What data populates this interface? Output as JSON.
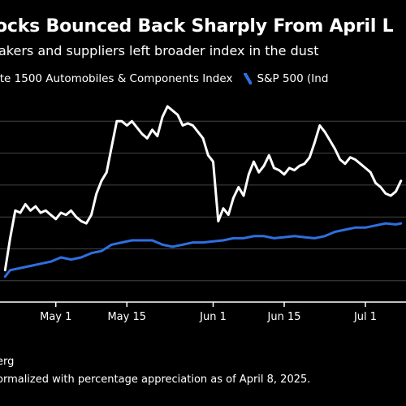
{
  "header": {
    "title": "ocks Bounced Back Sharply From April L",
    "subtitle": "akers and suppliers left broader index in the dust"
  },
  "legend": {
    "series1": "ite 1500 Automobiles & Components Index",
    "series2": "S&P 500 (Ind"
  },
  "footer": {
    "source": "erg",
    "note": "ormalized with percentage appreciation as of April 8, 2025."
  },
  "colors": {
    "background": "#000000",
    "series1": "#ffffff",
    "series2": "#2f6fe0",
    "grid": "#444444"
  },
  "chart_data": {
    "type": "line",
    "xlabel": "",
    "ylabel": "",
    "x_ticks": [
      "May 1",
      "May 15",
      "Jun 1",
      "Jun 15",
      "Jul 1"
    ],
    "grid": "horizontal",
    "legend_position": "top-left",
    "series": [
      {
        "name": "ite 1500 Automobiles & Components Index",
        "color": "#ffffff",
        "points": [
          [
            "2025-04-21",
            5
          ],
          [
            "2025-04-22",
            20
          ],
          [
            "2025-04-23",
            33
          ],
          [
            "2025-04-24",
            32
          ],
          [
            "2025-04-25",
            36
          ],
          [
            "2025-04-26",
            33
          ],
          [
            "2025-04-27",
            35
          ],
          [
            "2025-04-28",
            32
          ],
          [
            "2025-04-29",
            33
          ],
          [
            "2025-04-30",
            31
          ],
          [
            "2025-05-01",
            29
          ],
          [
            "2025-05-02",
            32
          ],
          [
            "2025-05-03",
            31
          ],
          [
            "2025-05-04",
            33
          ],
          [
            "2025-05-05",
            30
          ],
          [
            "2025-05-06",
            28
          ],
          [
            "2025-05-07",
            27
          ],
          [
            "2025-05-08",
            31
          ],
          [
            "2025-05-09",
            41
          ],
          [
            "2025-05-10",
            47
          ],
          [
            "2025-05-11",
            51
          ],
          [
            "2025-05-12",
            63
          ],
          [
            "2025-05-13",
            75
          ],
          [
            "2025-05-14",
            75
          ],
          [
            "2025-05-15",
            73
          ],
          [
            "2025-05-16",
            75
          ],
          [
            "2025-05-17",
            72
          ],
          [
            "2025-05-18",
            69
          ],
          [
            "2025-05-19",
            67
          ],
          [
            "2025-05-20",
            71
          ],
          [
            "2025-05-21",
            68
          ],
          [
            "2025-05-22",
            77
          ],
          [
            "2025-05-23",
            82
          ],
          [
            "2025-05-24",
            80
          ],
          [
            "2025-05-25",
            78
          ],
          [
            "2025-05-26",
            73
          ],
          [
            "2025-05-27",
            74
          ],
          [
            "2025-05-28",
            73
          ],
          [
            "2025-05-29",
            70
          ],
          [
            "2025-05-30",
            67
          ],
          [
            "2025-05-31",
            59
          ],
          [
            "2025-06-01",
            56
          ],
          [
            "2025-06-02",
            28
          ],
          [
            "2025-06-03",
            34
          ],
          [
            "2025-06-04",
            31
          ],
          [
            "2025-06-05",
            39
          ],
          [
            "2025-06-06",
            44
          ],
          [
            "2025-06-07",
            40
          ],
          [
            "2025-06-08",
            50
          ],
          [
            "2025-06-09",
            56
          ],
          [
            "2025-06-10",
            51
          ],
          [
            "2025-06-11",
            54
          ],
          [
            "2025-06-12",
            59
          ],
          [
            "2025-06-13",
            53
          ],
          [
            "2025-06-14",
            52
          ],
          [
            "2025-06-15",
            50
          ],
          [
            "2025-06-16",
            53
          ],
          [
            "2025-06-17",
            52
          ],
          [
            "2025-06-18",
            54
          ],
          [
            "2025-06-19",
            55
          ],
          [
            "2025-06-20",
            58
          ],
          [
            "2025-06-21",
            65
          ],
          [
            "2025-06-22",
            73
          ],
          [
            "2025-06-23",
            70
          ],
          [
            "2025-06-24",
            66
          ],
          [
            "2025-06-25",
            62
          ],
          [
            "2025-06-26",
            57
          ],
          [
            "2025-06-27",
            55
          ],
          [
            "2025-06-28",
            58
          ],
          [
            "2025-06-29",
            57
          ],
          [
            "2025-06-30",
            55
          ],
          [
            "2025-07-01",
            53
          ],
          [
            "2025-07-02",
            51
          ],
          [
            "2025-07-03",
            46
          ],
          [
            "2025-07-04",
            44
          ],
          [
            "2025-07-05",
            41
          ],
          [
            "2025-07-06",
            40
          ],
          [
            "2025-07-07",
            42
          ],
          [
            "2025-07-08",
            47
          ]
        ]
      },
      {
        "name": "S&P 500 (Ind",
        "color": "#2f6fe0",
        "points": [
          [
            "2025-04-21",
            2
          ],
          [
            "2025-04-22",
            5
          ],
          [
            "2025-04-24",
            6
          ],
          [
            "2025-04-26",
            7
          ],
          [
            "2025-04-28",
            8
          ],
          [
            "2025-04-30",
            9
          ],
          [
            "2025-05-02",
            11
          ],
          [
            "2025-05-04",
            10
          ],
          [
            "2025-05-06",
            11
          ],
          [
            "2025-05-08",
            13
          ],
          [
            "2025-05-10",
            14
          ],
          [
            "2025-05-12",
            17
          ],
          [
            "2025-05-14",
            18
          ],
          [
            "2025-05-16",
            19
          ],
          [
            "2025-05-18",
            19
          ],
          [
            "2025-05-20",
            19
          ],
          [
            "2025-05-22",
            17
          ],
          [
            "2025-05-24",
            16
          ],
          [
            "2025-05-26",
            17
          ],
          [
            "2025-05-28",
            18
          ],
          [
            "2025-05-30",
            18
          ],
          [
            "2025-06-01",
            18.5
          ],
          [
            "2025-06-03",
            19
          ],
          [
            "2025-06-05",
            20
          ],
          [
            "2025-06-07",
            20
          ],
          [
            "2025-06-09",
            21
          ],
          [
            "2025-06-11",
            21
          ],
          [
            "2025-06-13",
            20
          ],
          [
            "2025-06-15",
            20.5
          ],
          [
            "2025-06-17",
            21
          ],
          [
            "2025-06-19",
            20.5
          ],
          [
            "2025-06-21",
            20
          ],
          [
            "2025-06-23",
            21
          ],
          [
            "2025-06-25",
            23
          ],
          [
            "2025-06-27",
            24
          ],
          [
            "2025-06-29",
            25
          ],
          [
            "2025-07-01",
            25
          ],
          [
            "2025-07-03",
            26
          ],
          [
            "2025-07-05",
            27
          ],
          [
            "2025-07-07",
            26.5
          ],
          [
            "2025-07-08",
            27
          ]
        ]
      }
    ]
  }
}
